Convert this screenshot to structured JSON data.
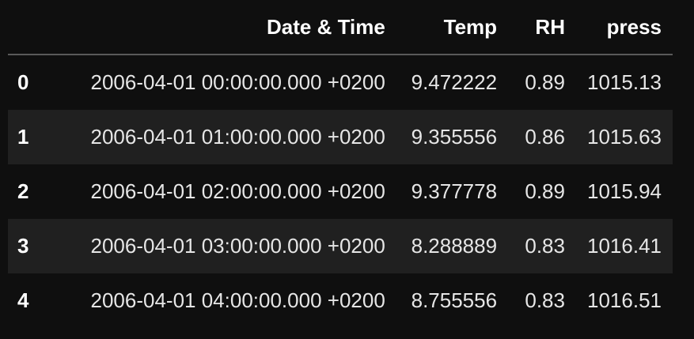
{
  "table": {
    "columns": [
      "Date & Time",
      "Temp",
      "RH",
      "press"
    ],
    "rows": [
      {
        "index": "0",
        "datetime": "2006-04-01 00:00:00.000 +0200",
        "temp": "9.472222",
        "rh": "0.89",
        "press": "1015.13"
      },
      {
        "index": "1",
        "datetime": "2006-04-01 01:00:00.000 +0200",
        "temp": "9.355556",
        "rh": "0.86",
        "press": "1015.63"
      },
      {
        "index": "2",
        "datetime": "2006-04-01 02:00:00.000 +0200",
        "temp": "9.377778",
        "rh": "0.89",
        "press": "1015.94"
      },
      {
        "index": "3",
        "datetime": "2006-04-01 03:00:00.000 +0200",
        "temp": "8.288889",
        "rh": "0.83",
        "press": "1016.41"
      },
      {
        "index": "4",
        "datetime": "2006-04-01 04:00:00.000 +0200",
        "temp": "8.755556",
        "rh": "0.83",
        "press": "1016.51"
      }
    ]
  }
}
